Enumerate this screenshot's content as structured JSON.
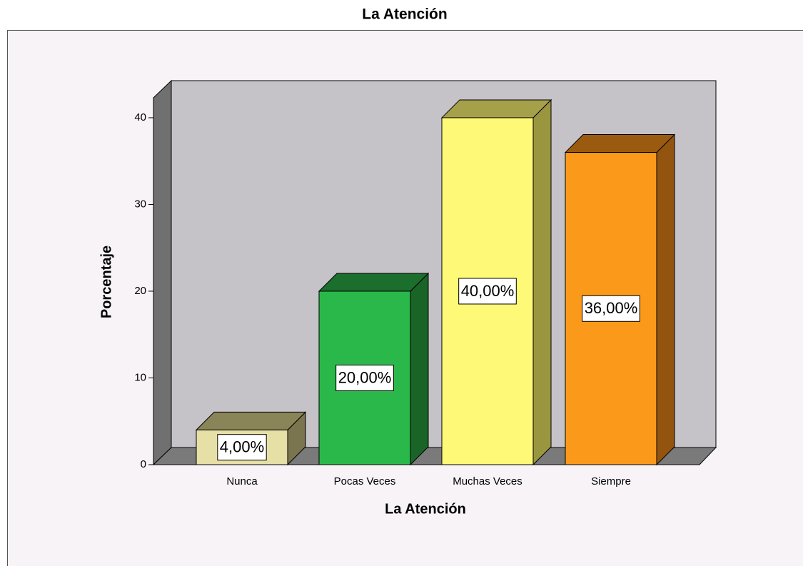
{
  "chart_data": {
    "type": "bar3d",
    "title": "La Atención",
    "x_label": "La Atención",
    "y_label": "Porcentaje",
    "categories": [
      "Nunca",
      "Pocas Veces",
      "Muchas Veces",
      "Siempre"
    ],
    "values": [
      4,
      20,
      40,
      36
    ],
    "value_labels": [
      "4,00%",
      "20,00%",
      "40,00%",
      "36,00%"
    ],
    "colors": [
      {
        "front": "#e6dfa6",
        "top": "#8a8558",
        "side": "#7a754e"
      },
      {
        "front": "#2bb84a",
        "top": "#1c6e2c",
        "side": "#1a6428"
      },
      {
        "front": "#fff978",
        "top": "#a5a04a",
        "side": "#9a9640"
      },
      {
        "front": "#fb9a1a",
        "top": "#9a5a10",
        "side": "#935410"
      }
    ],
    "ylim": [
      0,
      42.3
    ],
    "yticks": [
      0,
      10,
      20,
      30,
      40
    ]
  }
}
